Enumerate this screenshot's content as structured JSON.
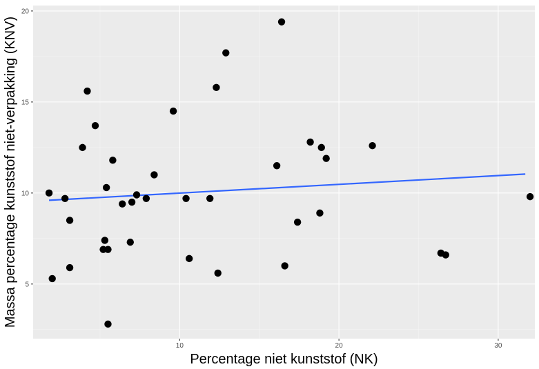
{
  "chart_data": {
    "type": "scatter",
    "title": "",
    "xlabel": "Percentage niet kunststof (NK)",
    "ylabel": "Massa percentage kunststof niet-verpakking (KNV)",
    "xlim": [
      0.8,
      32.3
    ],
    "ylim": [
      2.0,
      20.3
    ],
    "x_ticks": [
      10,
      20,
      30
    ],
    "y_ticks": [
      5,
      10,
      15,
      20
    ],
    "x_tick_labels": [
      "10",
      "20",
      "30"
    ],
    "y_tick_labels": [
      "5",
      "10",
      "15",
      "20"
    ],
    "grid": true,
    "legend": "none",
    "colors": {
      "panel_bg": "#ebebeb",
      "grid_major": "#ffffff",
      "grid_minor": "#f5f5f5",
      "point": "#000000",
      "trend": "#3366ff"
    },
    "points": [
      {
        "x": 1.8,
        "y": 10.0
      },
      {
        "x": 2.0,
        "y": 5.3
      },
      {
        "x": 2.8,
        "y": 9.7
      },
      {
        "x": 3.1,
        "y": 8.5
      },
      {
        "x": 3.1,
        "y": 5.9
      },
      {
        "x": 3.9,
        "y": 12.5
      },
      {
        "x": 4.2,
        "y": 15.6
      },
      {
        "x": 4.7,
        "y": 13.7
      },
      {
        "x": 5.2,
        "y": 6.9
      },
      {
        "x": 5.3,
        "y": 7.4
      },
      {
        "x": 5.4,
        "y": 10.3
      },
      {
        "x": 5.5,
        "y": 6.9
      },
      {
        "x": 5.5,
        "y": 2.8
      },
      {
        "x": 5.8,
        "y": 11.8
      },
      {
        "x": 6.4,
        "y": 9.4
      },
      {
        "x": 6.9,
        "y": 7.3
      },
      {
        "x": 7.0,
        "y": 9.5
      },
      {
        "x": 7.3,
        "y": 9.9
      },
      {
        "x": 7.9,
        "y": 9.7
      },
      {
        "x": 8.4,
        "y": 11.0
      },
      {
        "x": 9.6,
        "y": 14.5
      },
      {
        "x": 10.4,
        "y": 9.7
      },
      {
        "x": 10.6,
        "y": 6.4
      },
      {
        "x": 11.9,
        "y": 9.7
      },
      {
        "x": 12.3,
        "y": 15.8
      },
      {
        "x": 12.4,
        "y": 5.6
      },
      {
        "x": 12.9,
        "y": 17.7
      },
      {
        "x": 16.1,
        "y": 11.5
      },
      {
        "x": 16.4,
        "y": 19.4
      },
      {
        "x": 16.6,
        "y": 6.0
      },
      {
        "x": 17.4,
        "y": 8.4
      },
      {
        "x": 18.2,
        "y": 12.8
      },
      {
        "x": 18.8,
        "y": 8.9
      },
      {
        "x": 18.9,
        "y": 12.5
      },
      {
        "x": 19.2,
        "y": 11.9
      },
      {
        "x": 22.1,
        "y": 12.6
      },
      {
        "x": 26.4,
        "y": 6.7
      },
      {
        "x": 26.7,
        "y": 6.6
      },
      {
        "x": 32.0,
        "y": 9.8
      }
    ],
    "trend_line": {
      "x": [
        1.8,
        31.7
      ],
      "y": [
        9.6,
        11.04
      ]
    }
  }
}
